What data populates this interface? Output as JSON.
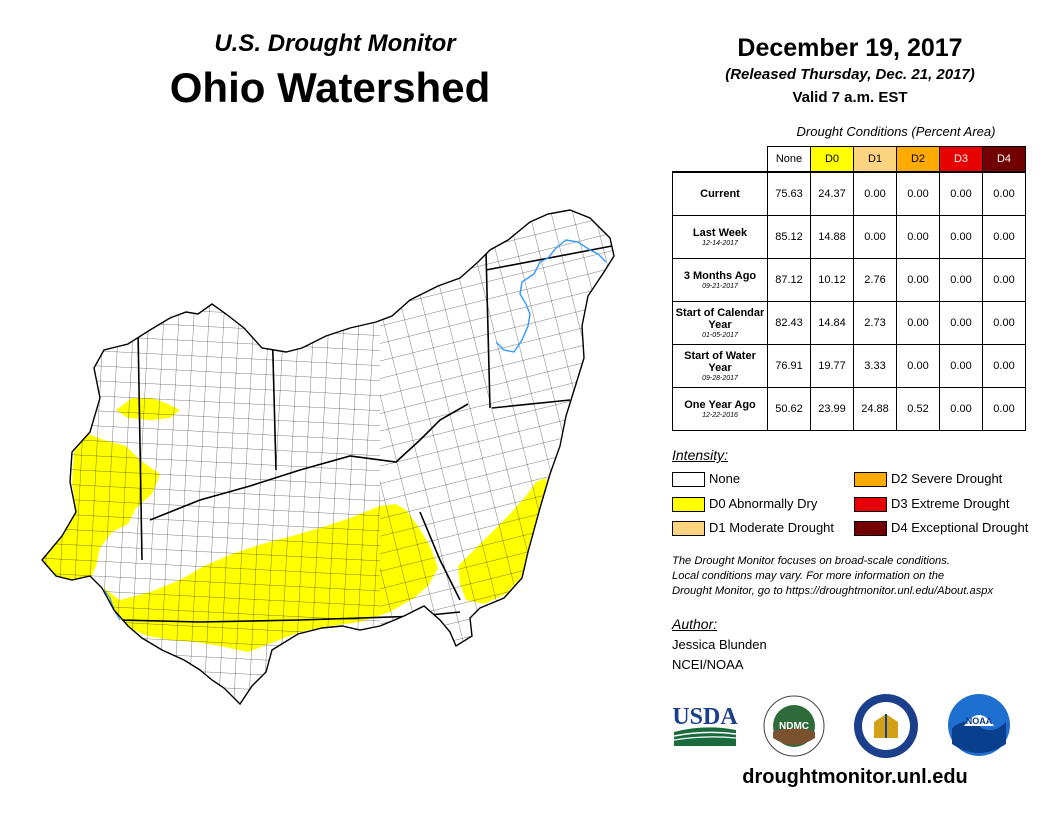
{
  "header": {
    "subtitle": "U.S. Drought Monitor",
    "title": "Ohio Watershed",
    "date": "December 19, 2017",
    "released": "(Released Thursday, Dec. 21, 2017)",
    "valid": "Valid 7 a.m. EST"
  },
  "table": {
    "caption": "Drought Conditions (Percent Area)",
    "columns": [
      "None",
      "D0",
      "D1",
      "D2",
      "D3",
      "D4"
    ],
    "column_colors": [
      "#ffffff",
      "#ffff00",
      "#fcd37f",
      "#ffaa00",
      "#e60000",
      "#730000"
    ],
    "rows": [
      {
        "label": "Current",
        "date": "",
        "values": [
          "75.63",
          "24.37",
          "0.00",
          "0.00",
          "0.00",
          "0.00"
        ]
      },
      {
        "label": "Last Week",
        "date": "12-14-2017",
        "values": [
          "85.12",
          "14.88",
          "0.00",
          "0.00",
          "0.00",
          "0.00"
        ]
      },
      {
        "label": "3 Months Ago",
        "date": "09-21-2017",
        "values": [
          "87.12",
          "10.12",
          "2.76",
          "0.00",
          "0.00",
          "0.00"
        ]
      },
      {
        "label": "Start of Calendar Year",
        "date": "01-05-2017",
        "values": [
          "82.43",
          "14.84",
          "2.73",
          "0.00",
          "0.00",
          "0.00"
        ]
      },
      {
        "label": "Start of Water Year",
        "date": "09-28-2017",
        "values": [
          "76.91",
          "19.77",
          "3.33",
          "0.00",
          "0.00",
          "0.00"
        ]
      },
      {
        "label": "One Year Ago",
        "date": "12-22-2016",
        "values": [
          "50.62",
          "23.99",
          "24.88",
          "0.52",
          "0.00",
          "0.00"
        ]
      }
    ]
  },
  "legend": {
    "title": "Intensity:",
    "items": [
      {
        "label": "None",
        "color": "#ffffff"
      },
      {
        "label": "D0 Abnormally Dry",
        "color": "#ffff00"
      },
      {
        "label": "D1 Moderate Drought",
        "color": "#fcd37f"
      },
      {
        "label": "D2 Severe Drought",
        "color": "#ffaa00"
      },
      {
        "label": "D3 Extreme Drought",
        "color": "#e60000"
      },
      {
        "label": "D4 Exceptional Drought",
        "color": "#730000"
      }
    ]
  },
  "note": {
    "line1": "The Drought Monitor focuses on broad-scale conditions.",
    "line2": "Local conditions may vary. For more information on the",
    "line3": "Drought Monitor, go to https://droughtmonitor.unl.edu/About.aspx"
  },
  "author": {
    "heading": "Author:",
    "name": "Jessica Blunden",
    "org": "NCEI/NOAA"
  },
  "logos": {
    "usda": "USDA",
    "ndmc": "NDMC",
    "noaa": "NOAA"
  },
  "map": {
    "fill_none": "#ffffff",
    "fill_d0": "#ffff00",
    "river_color": "#3399ff"
  },
  "footer": {
    "url": "droughtmonitor.unl.edu"
  }
}
